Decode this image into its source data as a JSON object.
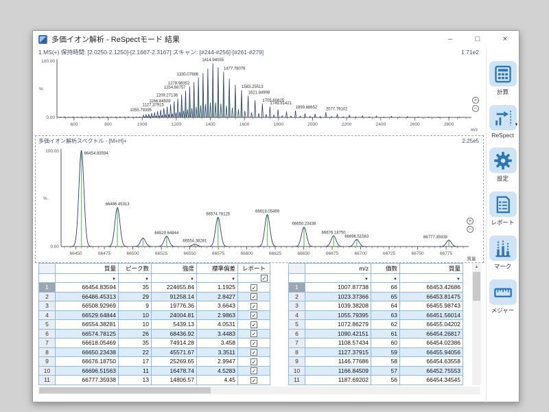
{
  "window": {
    "title": "多価イオン解析 - ReSpectモード 結果",
    "controls": {
      "minimize": "–",
      "maximize": "□",
      "close": "×"
    }
  },
  "info_bar": {
    "text": "1.MS(+) 保持時間: [2.0250-2.1250]-[2.1667-2.3167] スキャン: [#244-#256]-[#261-#279]",
    "scale": "1.71e2"
  },
  "deconv_panel": {
    "title": "多価イオン解析スペクトル - [M+H]+",
    "scale": "2.25e5"
  },
  "icons": {
    "filter": "▼",
    "check": "✓",
    "scroll_up": "▲",
    "zoom_in": "+",
    "zoom_out": "−",
    "dropdown": "▼"
  },
  "colors": {
    "accent": "#2e75b6",
    "spectrum": "#2b3c6e",
    "green": "#7ec87e",
    "button_bg": "#cfe3f6",
    "table_border": "#8fb8dc",
    "row_alt": "#dcebf8"
  },
  "chart_data": [
    {
      "type": "line",
      "style": "stick",
      "title": "",
      "xlabel": "m/z",
      "ylabel": "%",
      "xlim": [
        500,
        2900
      ],
      "ylim": [
        0,
        100
      ],
      "xticks": [
        600,
        800,
        1000,
        1200,
        1400,
        1600,
        1800,
        2000,
        2200,
        2400,
        2600,
        2800
      ],
      "minor_step": 50,
      "ytick_labels": [
        "0.00",
        "100.00"
      ],
      "peaks": [
        [
          520,
          0.6
        ],
        [
          545,
          0.9
        ],
        [
          570,
          0.5
        ],
        [
          595,
          1.0
        ],
        [
          620,
          0.7
        ],
        [
          645,
          1.1
        ],
        [
          670,
          0.6
        ],
        [
          695,
          0.9
        ],
        [
          720,
          0.7
        ],
        [
          745,
          1.2
        ],
        [
          770,
          0.8
        ],
        [
          795,
          1.0
        ],
        [
          820,
          0.6
        ],
        [
          845,
          0.9
        ],
        [
          870,
          1.1
        ],
        [
          895,
          0.7
        ],
        [
          920,
          1.0
        ],
        [
          945,
          0.8
        ],
        [
          965,
          1.2
        ],
        [
          985,
          1.0
        ],
        [
          1007.88,
          4
        ],
        [
          1015.6,
          1.2
        ],
        [
          1023.37,
          5
        ],
        [
          1031.3,
          1.4
        ],
        [
          1039.38,
          6
        ],
        [
          1047.5,
          1.7
        ],
        [
          1055.79,
          7.5
        ],
        [
          1064.2,
          2
        ],
        [
          1072.86,
          9
        ],
        [
          1081.5,
          2.4
        ],
        [
          1090.42,
          11
        ],
        [
          1099.4,
          2.8
        ],
        [
          1108.57,
          13
        ],
        [
          1117.9,
          3.4
        ],
        [
          1127.38,
          16
        ],
        [
          1137.0,
          4.8
        ],
        [
          1146.78,
          19
        ],
        [
          1156.8,
          5.7
        ],
        [
          1166.85,
          23
        ],
        [
          1177.2,
          6.9
        ],
        [
          1187.69,
          28
        ],
        [
          1198.4,
          8.4
        ],
        [
          1209.27,
          33
        ],
        [
          1220.4,
          9.9
        ],
        [
          1231.65,
          40,
          1
        ],
        [
          1243.2,
          12
        ],
        [
          1254.89,
          47,
          1
        ],
        [
          1266.9,
          14.1
        ],
        [
          1278.98,
          54,
          1
        ],
        [
          1291.5,
          16.2
        ],
        [
          1304.03,
          62,
          1
        ],
        [
          1317.0,
          18.6
        ],
        [
          1330.08,
          70,
          1
        ],
        [
          1343.6,
          21
        ],
        [
          1357.19,
          78,
          1
        ],
        [
          1371.3,
          23.4
        ],
        [
          1385.44,
          86,
          1
        ],
        [
          1400.2,
          25.8
        ],
        [
          1414.94,
          95,
          1
        ],
        [
          1430.3,
          26.4
        ],
        [
          1445.73,
          88,
          1
        ],
        [
          1461.7,
          24
        ],
        [
          1477.78,
          80,
          1
        ],
        [
          1494.5,
          20.4
        ],
        [
          1511.36,
          68,
          1
        ],
        [
          1528.9,
          17.1
        ],
        [
          1546.48,
          57,
          1
        ],
        [
          1564.8,
          14.4
        ],
        [
          1583.26,
          48,
          1
        ],
        [
          1602.5,
          11.4
        ],
        [
          1621.85,
          38
        ],
        [
          1642.0,
          9
        ],
        [
          1662.37,
          30
        ],
        [
          1683.9,
          7.2
        ],
        [
          1705.61,
          24
        ],
        [
          1727.6,
          5.7
        ],
        [
          1749.81,
          19
        ],
        [
          1773.4,
          4.3
        ],
        [
          1797.09,
          14
        ],
        [
          1821.9,
          3.2
        ],
        [
          1846.97,
          10
        ],
        [
          1873.2,
          2.6
        ],
        [
          1899.69,
          12
        ],
        [
          1927.4,
          2.2
        ],
        [
          1955.5,
          7
        ],
        [
          1984.9,
          1.9
        ],
        [
          2014.69,
          6
        ],
        [
          2045.9,
          1.7
        ],
        [
          2077.79,
          9
        ],
        [
          2110.9,
          1.5
        ],
        [
          2144.76,
          5
        ],
        [
          2180.0,
          1.3
        ],
        [
          2216.17,
          4
        ],
        [
          2253.8,
          1.1
        ],
        [
          2292.51,
          3
        ],
        [
          2332.9,
          0.9
        ],
        [
          2374.32,
          2.5
        ],
        [
          2417.7,
          0.8
        ],
        [
          2462.2,
          2
        ],
        [
          2508.8,
          0.7
        ],
        [
          2556.8,
          1.5
        ],
        [
          2620.0,
          0.9
        ],
        [
          2680.0,
          0.6
        ],
        [
          2740.0,
          0.8
        ],
        [
          2800.0,
          0.5
        ],
        [
          2860.0,
          0.7
        ]
      ],
      "labels": [
        {
          "x": 1055.79395,
          "text": "1055.79395",
          "anchor": "end"
        },
        {
          "x": 1127.37915,
          "text": "1127.37915",
          "anchor": "end"
        },
        {
          "x": 1166.84509,
          "text": "1166.84509",
          "anchor": "end"
        },
        {
          "x": 1209.27136,
          "text": "1209.27136",
          "anchor": "end"
        },
        {
          "x": 1254.88757,
          "text": "1254.88757",
          "anchor": "end"
        },
        {
          "x": 1278.98352,
          "text": "1278.98352",
          "anchor": "end"
        },
        {
          "x": 1330.07886,
          "text": "1330.07886",
          "anchor": "end"
        },
        {
          "x": 1414.94055,
          "text": "1414.94055",
          "anchor": "middle"
        },
        {
          "x": 1477.78076,
          "text": "1477.78076",
          "anchor": "start"
        },
        {
          "x": 1583.25513,
          "text": "1583.25513",
          "anchor": "start"
        },
        {
          "x": 1621.84998,
          "text": "1621.84998",
          "anchor": "start"
        },
        {
          "x": 1705.60625,
          "text": "1705.60625",
          "anchor": "start"
        },
        {
          "x": 1749.81421,
          "text": "1749.81421",
          "anchor": "start"
        },
        {
          "x": 1899.68652,
          "text": "1899.68652",
          "anchor": "start"
        },
        {
          "x": 2077.79102,
          "text": "2077.79102",
          "anchor": "start"
        }
      ]
    },
    {
      "type": "line",
      "style": "gauss",
      "sigma": 2.2,
      "title": "多価イオン解析スペクトル - [M+H]+",
      "xlabel": "質量",
      "ylabel": "%",
      "xlim": [
        66437,
        66790
      ],
      "ylim": [
        0,
        100
      ],
      "xticks": [
        66450,
        66475,
        66500,
        66525,
        66550,
        66575,
        66600,
        66625,
        66650,
        66675,
        66700,
        66725,
        66750,
        66775
      ],
      "minor_step": 5,
      "ytick_labels": [
        "0.00",
        "100.00"
      ],
      "peaks": [
        [
          66454.83594,
          100,
          1
        ],
        [
          66486.45313,
          40.6,
          1
        ],
        [
          66508.92969,
          8.8,
          1
        ],
        [
          66529.64844,
          10.7,
          1
        ],
        [
          66554.38281,
          2.4,
          1
        ],
        [
          66574.78125,
          30.5,
          1
        ],
        [
          66618.05469,
          33.3,
          1
        ],
        [
          66650.23438,
          20.3,
          1
        ],
        [
          66676.1875,
          11.2,
          1
        ],
        [
          66696.51563,
          7.3,
          1
        ],
        [
          66777.35938,
          6.6,
          1
        ]
      ],
      "labels": [
        {
          "x": 66454.83594,
          "text": "66454.83594",
          "anchor": "start",
          "dx": 4,
          "dy": 6
        },
        {
          "x": 66486.45313,
          "text": "66486.45313"
        },
        {
          "x": 66529.64844,
          "text": "66529.64844"
        },
        {
          "x": 66554.38281,
          "text": "66554.38281"
        },
        {
          "x": 66574.78125,
          "text": "66574.78125"
        },
        {
          "x": 66618.05469,
          "text": "66618.05469"
        },
        {
          "x": 66650.23438,
          "text": "66650.23438"
        },
        {
          "x": 66676.1875,
          "text": "66676.18750"
        },
        {
          "x": 66696.51563,
          "text": "66696.51563"
        },
        {
          "x": 66777.35938,
          "text": "66777.35938",
          "anchor": "end",
          "dx": -2
        }
      ]
    }
  ],
  "left_table": {
    "headers": [
      "",
      "質量",
      "ピーク数",
      "強度",
      "標準偏差",
      "レポート"
    ],
    "rows": [
      [
        "1",
        "66454.83594",
        "35",
        "224655.84",
        "1.1925"
      ],
      [
        "2",
        "66486.45313",
        "29",
        "91258.14",
        "2.8427"
      ],
      [
        "3",
        "66508.92969",
        "9",
        "19776.36",
        "3.6643"
      ],
      [
        "4",
        "66529.64844",
        "10",
        "24004.81",
        "2.9863"
      ],
      [
        "5",
        "66554.38281",
        "10",
        "5439.13",
        "4.0531"
      ],
      [
        "6",
        "66574.78125",
        "26",
        "68436.92",
        "3.4483"
      ],
      [
        "7",
        "66618.05469",
        "35",
        "74914.28",
        "3.458"
      ],
      [
        "8",
        "66650.23438",
        "22",
        "45571.67",
        "3.3511"
      ],
      [
        "9",
        "66676.18750",
        "17",
        "25269.65",
        "2.9947"
      ],
      [
        "10",
        "66696.51563",
        "11",
        "16478.74",
        "4.5283"
      ],
      [
        "11",
        "66777.35938",
        "13",
        "14806.57",
        "4.45"
      ]
    ]
  },
  "right_table": {
    "headers": [
      "",
      "m/z",
      "価数",
      "質量"
    ],
    "rows": [
      [
        "1",
        "1007.87738",
        "66",
        "66453.42686"
      ],
      [
        "2",
        "1023.37366",
        "65",
        "66453.81475"
      ],
      [
        "3",
        "1039.38208",
        "64",
        "66455.98743"
      ],
      [
        "4",
        "1055.79395",
        "63",
        "66451.56014"
      ],
      [
        "5",
        "1072.86279",
        "62",
        "66455.04202"
      ],
      [
        "6",
        "1090.42151",
        "61",
        "66454.26817"
      ],
      [
        "7",
        "1108.57434",
        "60",
        "66454.02386"
      ],
      [
        "8",
        "1127.37915",
        "59",
        "66455.94056"
      ],
      [
        "9",
        "1146.77686",
        "58",
        "66454.63558"
      ],
      [
        "10",
        "1166.84509",
        "57",
        "66452.75553"
      ],
      [
        "11",
        "1187.69202",
        "56",
        "66454.34545"
      ]
    ]
  },
  "sidebar": {
    "buttons": [
      {
        "id": "calc",
        "label": "計算"
      },
      {
        "id": "respect",
        "label": "ReSpect",
        "dropdown": true
      },
      {
        "id": "settings",
        "label": "設定"
      },
      {
        "id": "report",
        "label": "レポート"
      },
      {
        "id": "mark",
        "label": "マーク"
      },
      {
        "id": "measure",
        "label": "メジャー"
      }
    ]
  }
}
